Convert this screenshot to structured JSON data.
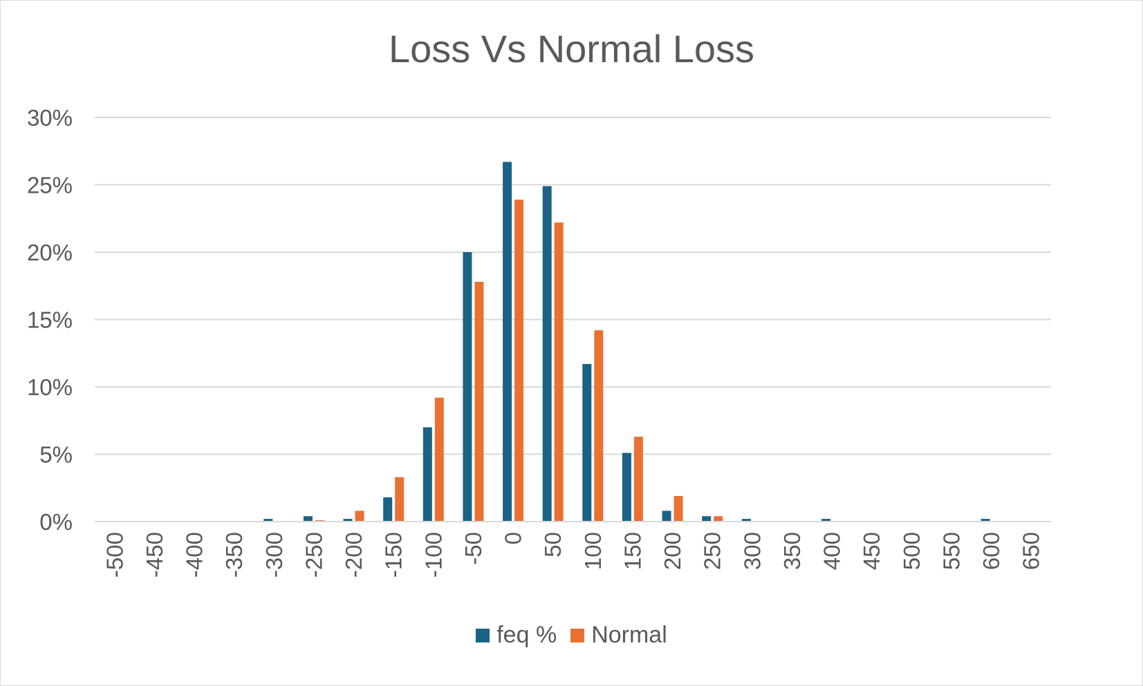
{
  "chart_data": {
    "type": "bar",
    "title": "Loss Vs Normal Loss",
    "xlabel": "",
    "ylabel": "",
    "categories": [
      "-500",
      "-450",
      "-400",
      "-350",
      "-300",
      "-250",
      "-200",
      "-150",
      "-100",
      "-50",
      "0",
      "50",
      "100",
      "150",
      "200",
      "250",
      "300",
      "350",
      "400",
      "450",
      "500",
      "550",
      "600",
      "650"
    ],
    "series": [
      {
        "name": "feq %",
        "color": "#1a6385",
        "values": [
          0,
          0,
          0,
          0,
          0.2,
          0.4,
          0.2,
          1.8,
          7.0,
          20.0,
          26.7,
          24.9,
          11.7,
          5.1,
          0.8,
          0.4,
          0.2,
          0,
          0.2,
          0,
          0,
          0,
          0.2,
          0
        ]
      },
      {
        "name": "Normal",
        "color": "#e97132",
        "values": [
          0,
          0,
          0,
          0,
          0,
          0.1,
          0.8,
          3.3,
          9.2,
          17.8,
          23.9,
          22.2,
          14.2,
          6.3,
          1.9,
          0.4,
          0,
          0,
          0,
          0,
          0,
          0,
          0,
          0
        ]
      }
    ],
    "ylim": [
      0,
      30
    ],
    "yticks": [
      0,
      5,
      10,
      15,
      20,
      25,
      30
    ],
    "ytick_labels": [
      "0%",
      "5%",
      "10%",
      "15%",
      "20%",
      "25%",
      "30%"
    ],
    "grid": true,
    "legend": "bottom"
  }
}
